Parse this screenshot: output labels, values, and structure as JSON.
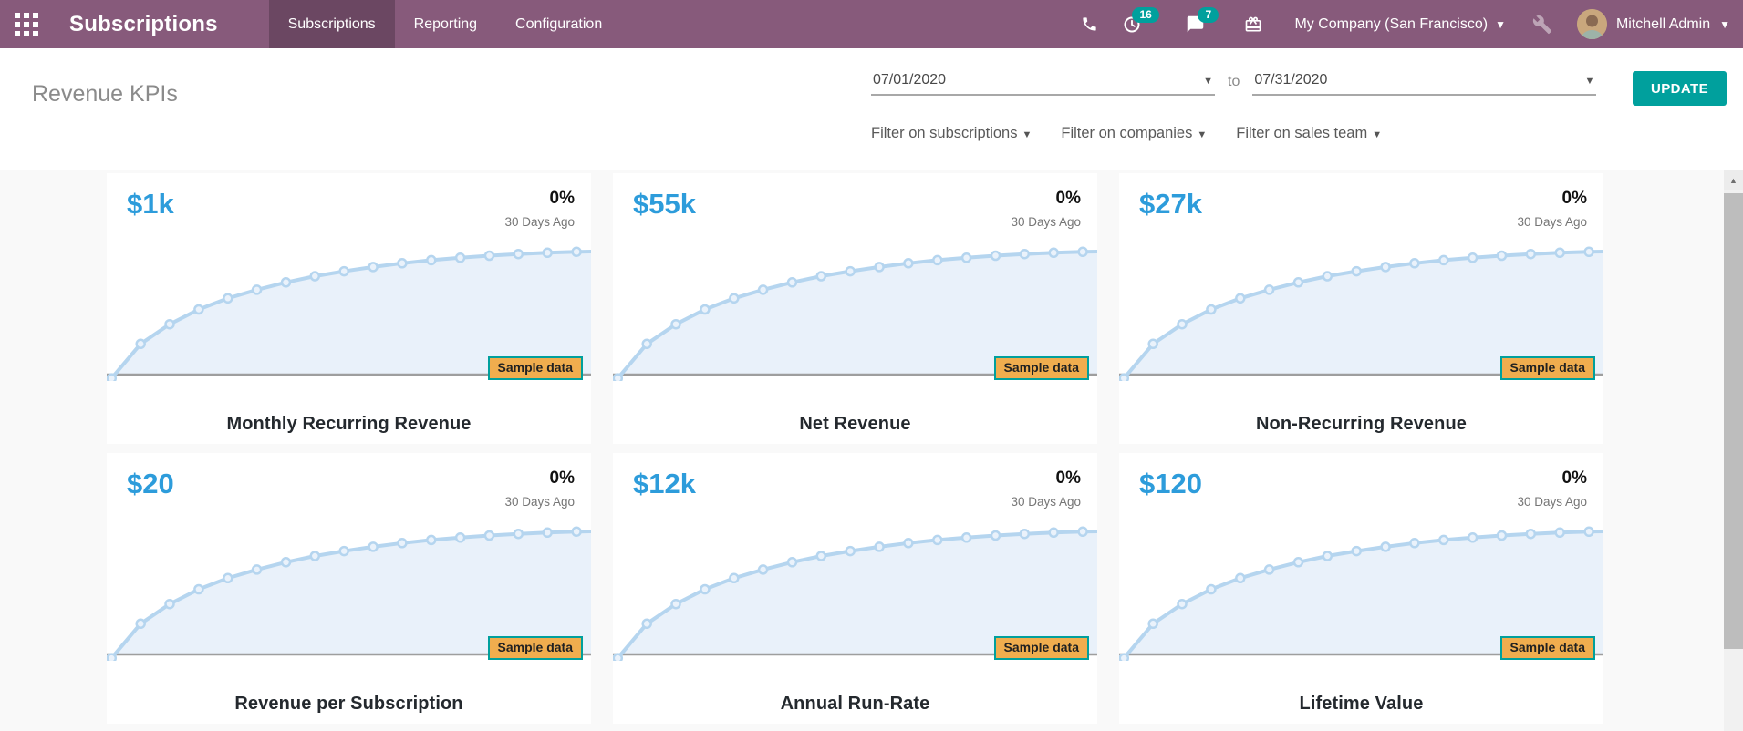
{
  "navbar": {
    "app_title": "Subscriptions",
    "menu": [
      {
        "label": "Subscriptions",
        "active": true
      },
      {
        "label": "Reporting",
        "active": false
      },
      {
        "label": "Configuration",
        "active": false
      }
    ],
    "activity_badge": "16",
    "message_badge": "7",
    "company_label": "My Company (San Francisco)",
    "user_name": "Mitchell Admin"
  },
  "control_panel": {
    "title": "Revenue KPIs",
    "date_from": "07/01/2020",
    "to_label": "to",
    "date_to": "07/31/2020",
    "update_button": "UPDATE",
    "filters": [
      {
        "label": "Filter on subscriptions"
      },
      {
        "label": "Filter on companies"
      },
      {
        "label": "Filter on sales team"
      }
    ]
  },
  "kpis": [
    {
      "value": "$1k",
      "change": "0%",
      "period": "30 Days Ago",
      "sample_label": "Sample data",
      "title": "Monthly Recurring Revenue"
    },
    {
      "value": "$55k",
      "change": "0%",
      "period": "30 Days Ago",
      "sample_label": "Sample data",
      "title": "Net Revenue"
    },
    {
      "value": "$27k",
      "change": "0%",
      "period": "30 Days Ago",
      "sample_label": "Sample data",
      "title": "Non-Recurring Revenue"
    },
    {
      "value": "$20",
      "change": "0%",
      "period": "30 Days Ago",
      "sample_label": "Sample data",
      "title": "Revenue per Subscription"
    },
    {
      "value": "$12k",
      "change": "0%",
      "period": "30 Days Ago",
      "sample_label": "Sample data",
      "title": "Annual Run-Rate"
    },
    {
      "value": "$120",
      "change": "0%",
      "period": "30 Days Ago",
      "sample_label": "Sample data",
      "title": "Lifetime Value"
    }
  ],
  "chart_data": {
    "type": "area",
    "title": "Sample-data sparkline (identical logarithmic rise on all six KPI cards)",
    "x_percent": [
      1,
      7,
      13,
      19,
      25,
      31,
      37,
      43,
      49,
      55,
      61,
      67,
      73,
      79,
      85,
      91,
      97,
      100
    ],
    "y_percent": [
      -3,
      25,
      41,
      53,
      62,
      69,
      75,
      80,
      84,
      87.5,
      90.5,
      93,
      95,
      96.7,
      98,
      99,
      99.8,
      100
    ],
    "ylim": [
      0,
      100
    ],
    "grid": false,
    "markers": true,
    "legend": false
  },
  "colors": {
    "navbar_bg": "#875A7B",
    "navbar_active_bg": "#6B4762",
    "teal": "#00A09D",
    "kpi_blue": "#2D9CDB",
    "sample_badge_bg": "#F0AD4E",
    "spark_line": "#B5D5EF",
    "spark_fill": "#E9F1FA",
    "axis_gray": "#9E9E9E"
  }
}
